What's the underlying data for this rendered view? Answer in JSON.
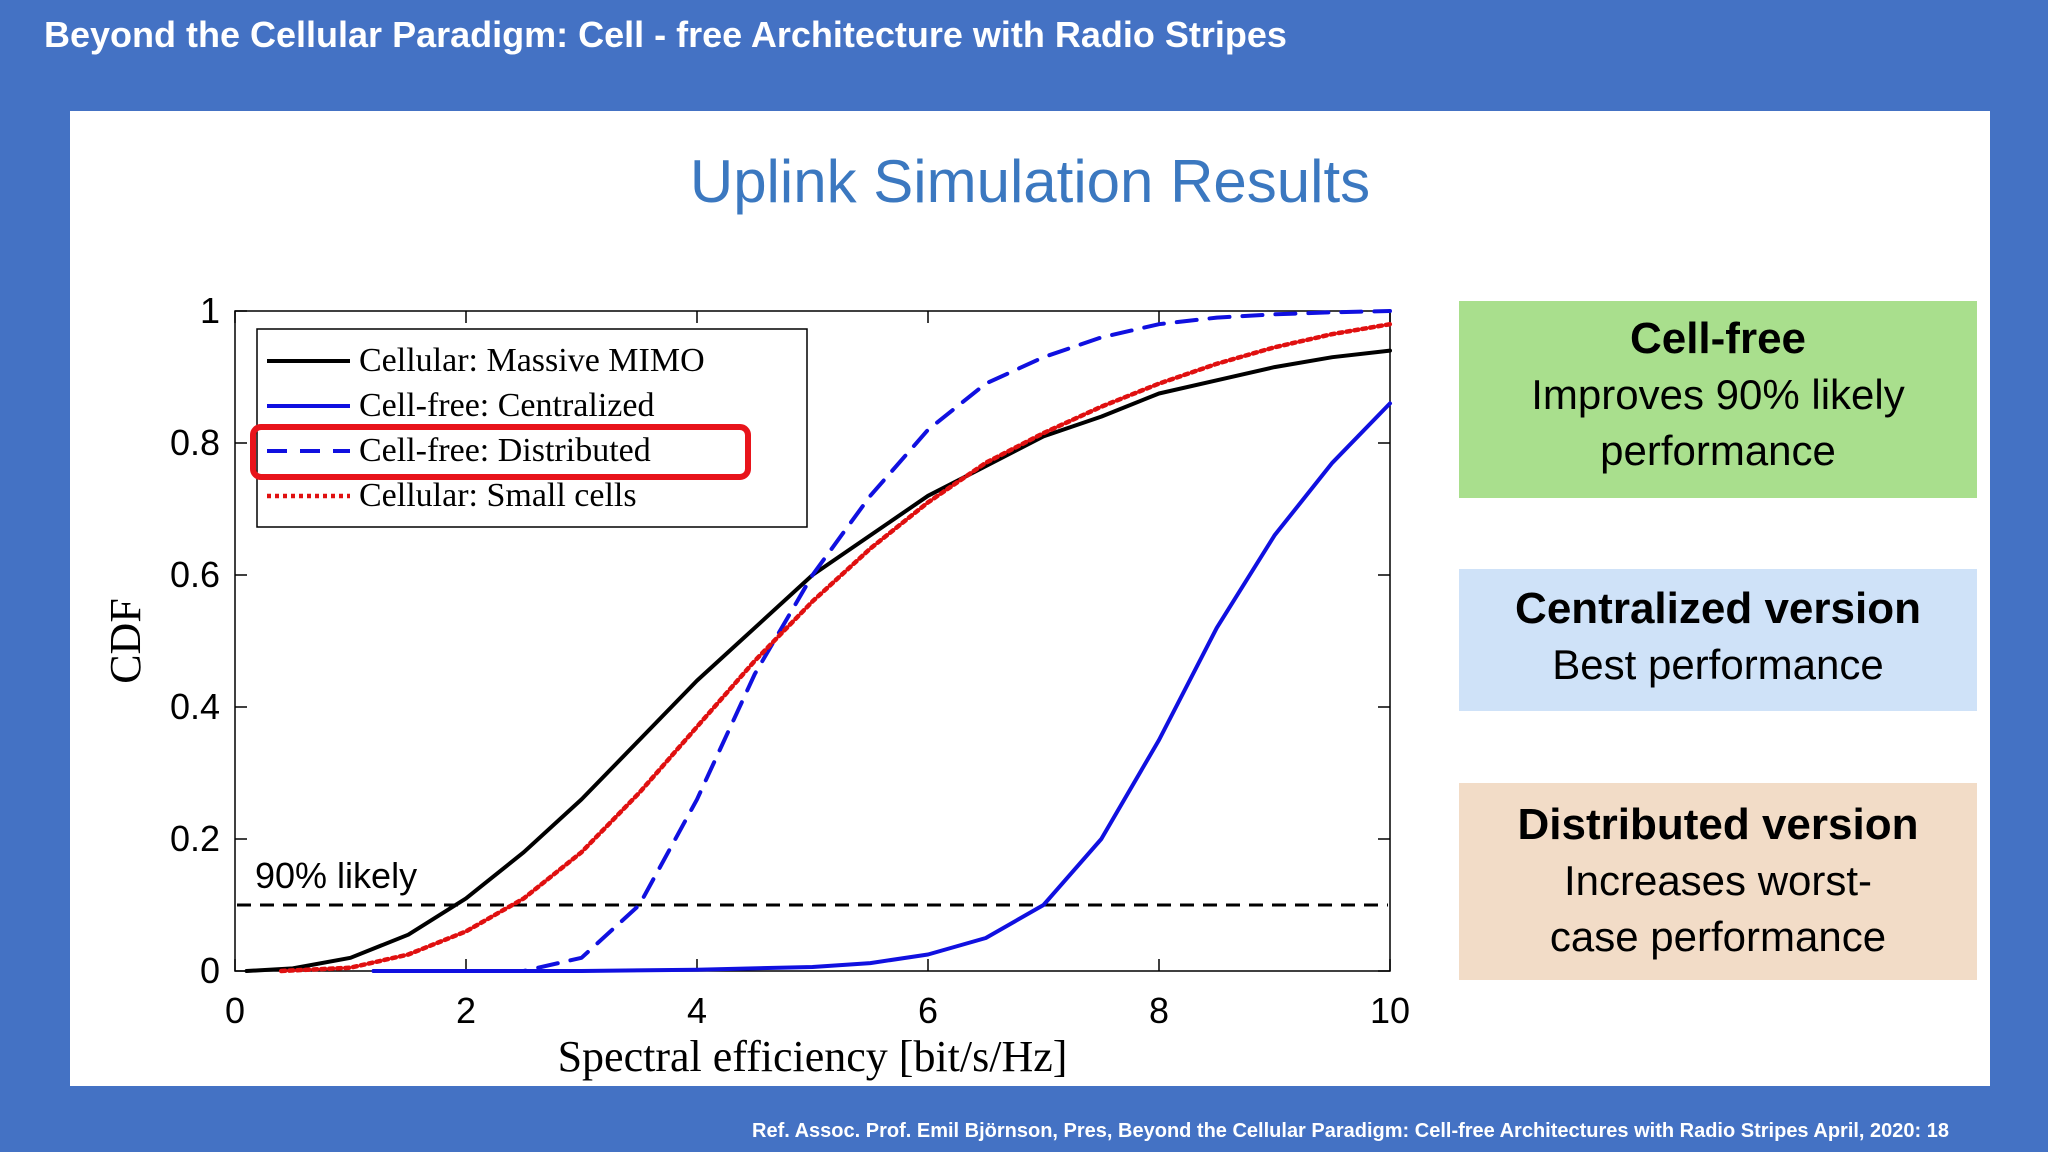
{
  "header": {
    "title": "Beyond the Cellular Paradigm: Cell - free Architecture with Radio Stripes"
  },
  "slide": {
    "title": "Uplink Simulation Results"
  },
  "callouts": [
    {
      "heading": "Cell-free",
      "lines": [
        "Improves 90% likely",
        "performance"
      ],
      "color": "#a9df8d"
    },
    {
      "heading": "Centralized version",
      "lines": [
        "Best performance"
      ],
      "color": "#cfe2f8"
    },
    {
      "heading": "Distributed version",
      "lines": [
        "Increases worst-",
        "case performance"
      ],
      "color": "#f2dcc7"
    }
  ],
  "footer": {
    "reference": "Ref. Assoc. Prof. Emil Björnson, Pres, Beyond the Cellular Paradigm: Cell-free Architectures with Radio Stripes April, 2020: 18"
  },
  "chart_data": {
    "type": "line",
    "xlabel": "Spectral efficiency [bit/s/Hz]",
    "ylabel": "CDF",
    "xlim": [
      0,
      10
    ],
    "ylim": [
      0,
      1
    ],
    "xticks": [
      "0",
      "2",
      "4",
      "6",
      "8",
      "10"
    ],
    "yticks": [
      "0",
      "0.2",
      "0.4",
      "0.6",
      "0.8",
      "1"
    ],
    "legend_position": "top-left",
    "highlighted_legend_entry": "Cell-free: Distributed",
    "highlight_color": "#e8141b",
    "annotation": {
      "text": "90% likely",
      "y": 0.1
    },
    "series": [
      {
        "name": "Cellular: Massive MIMO",
        "color": "#000000",
        "style": "solid",
        "x": [
          0.1,
          0.5,
          1,
          1.5,
          2,
          2.5,
          3,
          3.5,
          4,
          4.5,
          5,
          5.5,
          6,
          6.5,
          7,
          7.5,
          8,
          8.5,
          9,
          9.5,
          10
        ],
        "y": [
          0,
          0.004,
          0.02,
          0.055,
          0.11,
          0.18,
          0.26,
          0.35,
          0.44,
          0.52,
          0.6,
          0.66,
          0.72,
          0.765,
          0.81,
          0.84,
          0.875,
          0.895,
          0.915,
          0.93,
          0.94
        ]
      },
      {
        "name": "Cell-free: Centralized",
        "color": "#1010e0",
        "style": "solid",
        "x": [
          1.2,
          2,
          3,
          4,
          5,
          5.5,
          6,
          6.5,
          7,
          7.5,
          8,
          8.5,
          9,
          9.5,
          10
        ],
        "y": [
          0,
          0,
          0,
          0.002,
          0.006,
          0.012,
          0.025,
          0.05,
          0.1,
          0.2,
          0.35,
          0.52,
          0.66,
          0.77,
          0.86
        ]
      },
      {
        "name": "Cell-free: Distributed",
        "color": "#1010e0",
        "style": "dashed",
        "x": [
          1.2,
          2,
          2.5,
          3,
          3.5,
          4,
          4.5,
          5,
          5.5,
          6,
          6.5,
          7,
          7.5,
          8,
          8.5,
          9,
          9.5,
          10
        ],
        "y": [
          0,
          0,
          0,
          0.02,
          0.1,
          0.26,
          0.45,
          0.6,
          0.72,
          0.82,
          0.89,
          0.93,
          0.96,
          0.98,
          0.99,
          0.995,
          0.998,
          1.0
        ]
      },
      {
        "name": "Cellular: Small cells",
        "color": "#e01010",
        "style": "dotted",
        "x": [
          0.4,
          1,
          1.5,
          2,
          2.5,
          3,
          3.5,
          4,
          4.5,
          5,
          5.5,
          6,
          6.5,
          7,
          7.5,
          8,
          8.5,
          9,
          9.5,
          10
        ],
        "y": [
          0,
          0.005,
          0.025,
          0.06,
          0.11,
          0.18,
          0.27,
          0.37,
          0.47,
          0.56,
          0.64,
          0.71,
          0.77,
          0.815,
          0.855,
          0.89,
          0.92,
          0.945,
          0.965,
          0.98
        ]
      }
    ]
  }
}
